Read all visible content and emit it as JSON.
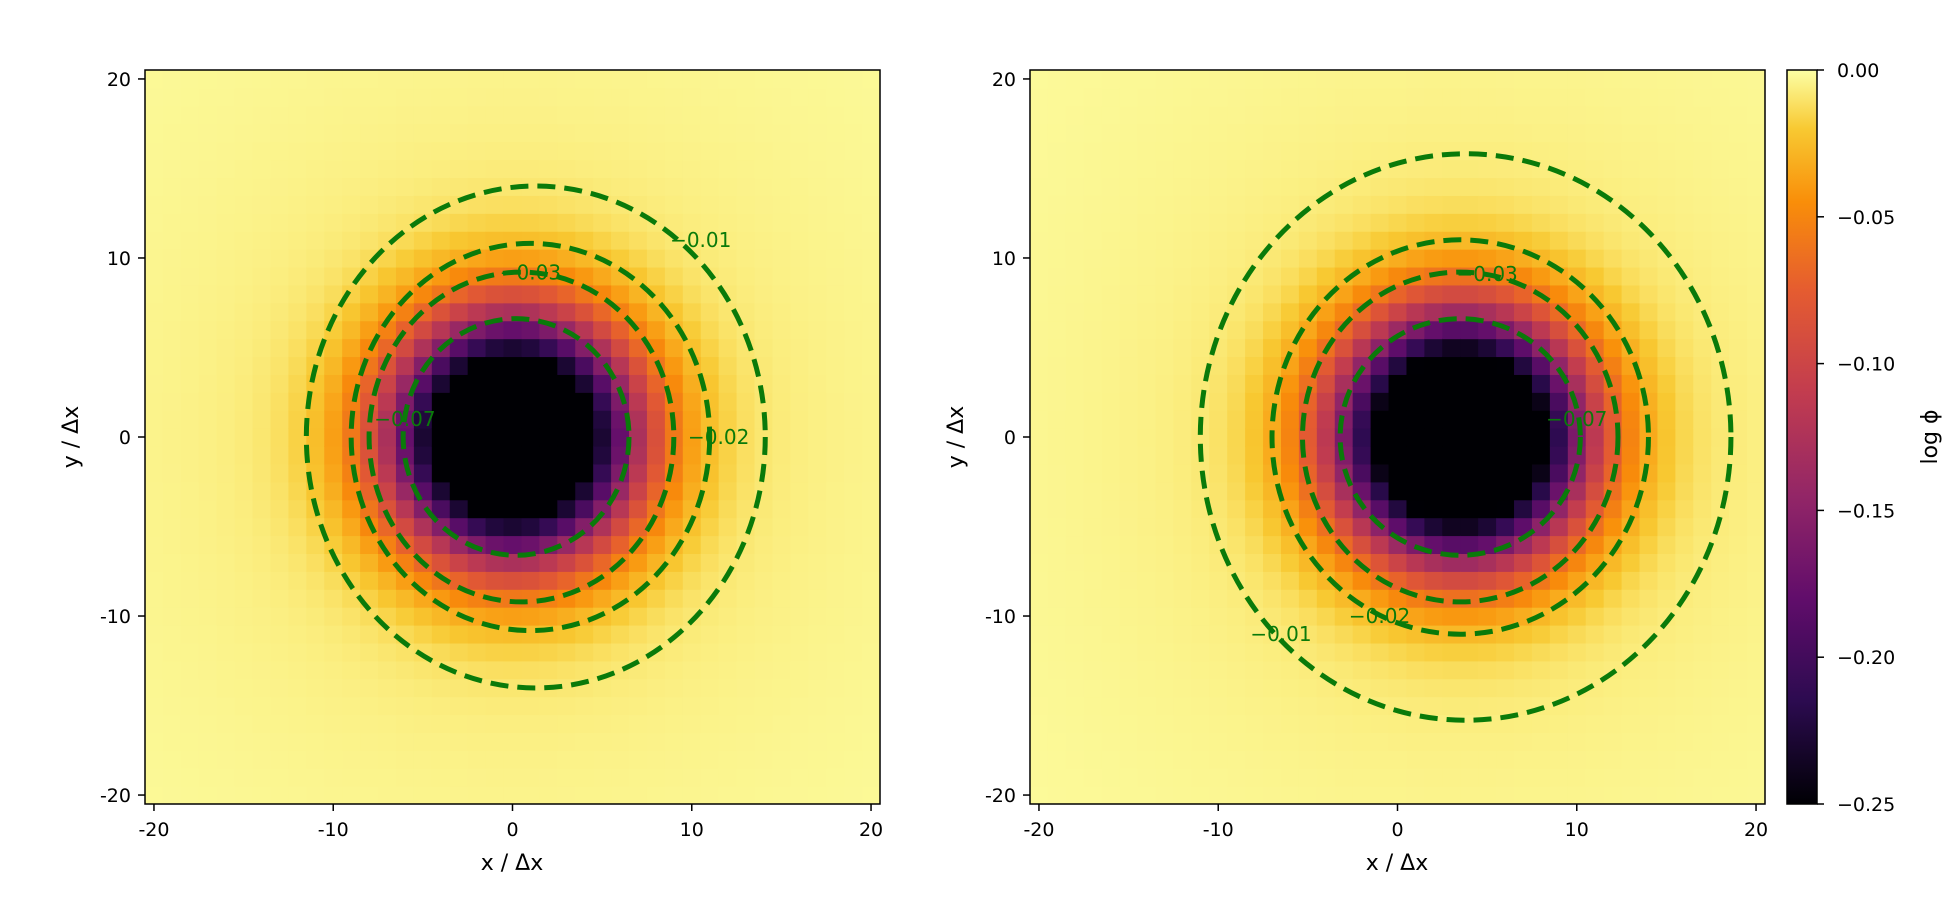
{
  "chart_data": [
    {
      "type": "heatmap",
      "xlabel": "x / Δx",
      "ylabel": "y / Δx",
      "xlim": [
        -20.5,
        20.5
      ],
      "ylim": [
        -20.5,
        20.5
      ],
      "xticks": [
        -20,
        -10,
        0,
        10,
        20
      ],
      "yticks": [
        -20,
        -10,
        0,
        10,
        20
      ],
      "xtick_labels": [
        "-20",
        "-10",
        "0",
        "10",
        "20"
      ],
      "ytick_labels": [
        "-20",
        "-10",
        "0",
        "10",
        "20"
      ],
      "grid": false,
      "field": {
        "center_x": 0,
        "center_y": 0,
        "dark_radius": 4.0,
        "grid_cells": 41
      },
      "contours": [
        {
          "level": -0.01,
          "label": "−0.01",
          "center": [
            1.3,
            0
          ],
          "rx": 12.8,
          "ry": 14.0,
          "label_at": [
            10.5,
            11
          ]
        },
        {
          "level": -0.02,
          "label": "−0.02",
          "center": [
            1.0,
            0
          ],
          "rx": 10.0,
          "ry": 10.8,
          "label_at": [
            11.5,
            0
          ]
        },
        {
          "level": -0.03,
          "label": "−0.03",
          "center": [
            0.5,
            0
          ],
          "rx": 8.5,
          "ry": 9.2,
          "label_at": [
            1.0,
            9.2
          ]
        },
        {
          "level": -0.07,
          "label": "−0.07",
          "center": [
            0.2,
            0
          ],
          "rx": 6.3,
          "ry": 6.6,
          "label_at": [
            -6.0,
            1.0
          ]
        }
      ]
    },
    {
      "type": "heatmap",
      "xlabel": "x / Δx",
      "ylabel": "y / Δx",
      "xlim": [
        -20.5,
        20.5
      ],
      "ylim": [
        -20.5,
        20.5
      ],
      "xticks": [
        -20,
        -10,
        0,
        10,
        20
      ],
      "yticks": [
        -20,
        -10,
        0,
        10,
        20
      ],
      "xtick_labels": [
        "-20",
        "-10",
        "0",
        "10",
        "20"
      ],
      "ytick_labels": [
        "-20",
        "-10",
        "0",
        "10",
        "20"
      ],
      "grid": false,
      "field": {
        "center_x": 3.5,
        "center_y": 0,
        "dark_radius": 4.2,
        "grid_cells": 41
      },
      "contours": [
        {
          "level": -0.01,
          "label": "−0.01",
          "center": [
            3.8,
            0
          ],
          "rx": 14.8,
          "ry": 15.8,
          "label_at": [
            -6.5,
            -11
          ]
        },
        {
          "level": -0.02,
          "label": "−0.02",
          "center": [
            3.5,
            0
          ],
          "rx": 10.5,
          "ry": 11.0,
          "label_at": [
            -1.0,
            -10
          ]
        },
        {
          "level": -0.03,
          "label": "−0.03",
          "center": [
            3.5,
            0
          ],
          "rx": 8.8,
          "ry": 9.2,
          "label_at": [
            5.0,
            9.1
          ]
        },
        {
          "level": -0.07,
          "label": "−0.07",
          "center": [
            3.5,
            0
          ],
          "rx": 6.7,
          "ry": 6.6,
          "label_at": [
            10.0,
            1.0
          ]
        }
      ]
    }
  ],
  "colorbar": {
    "label": "log ϕ",
    "range": [
      -0.25,
      0.0
    ],
    "ticks": [
      0.0,
      -0.05,
      -0.1,
      -0.15,
      -0.2,
      -0.25
    ],
    "tick_labels": [
      "0.00",
      "−0.05",
      "−0.10",
      "−0.15",
      "−0.20",
      "−0.25"
    ],
    "colormap": "inferno"
  },
  "colors": {
    "contour": "#0a7a0a",
    "background_field": "#f6f39a"
  }
}
